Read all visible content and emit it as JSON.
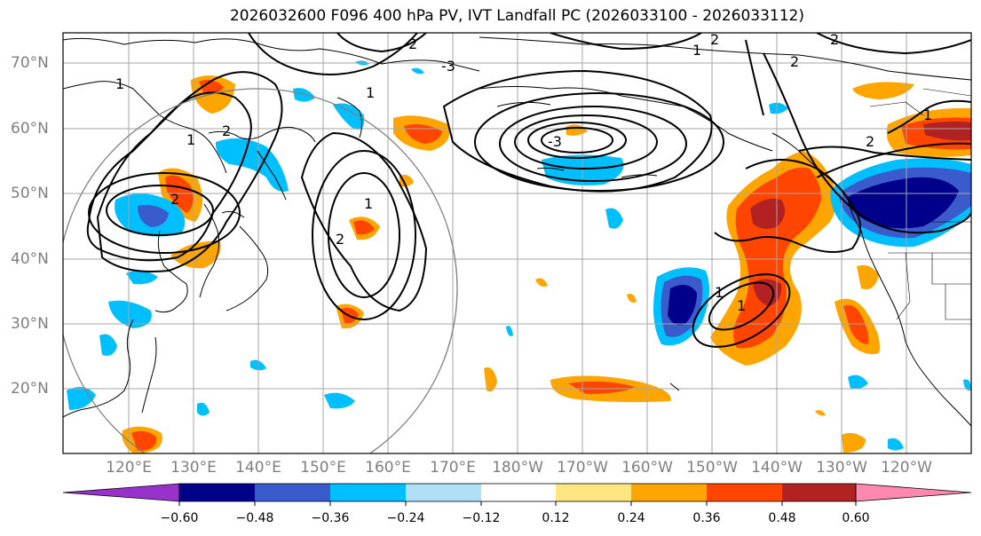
{
  "title": "2026032600 F096 400 hPa PV, IVT Landfall PC (2026033100 - 2026033112)",
  "lat_labels": [
    "70°N",
    "60°N",
    "50°N",
    "40°N",
    "30°N",
    "20°N"
  ],
  "lon_labels": [
    "120°E",
    "130°E",
    "140°E",
    "150°E",
    "160°E",
    "170°E",
    "180°W",
    "170°W",
    "160°W",
    "150°W",
    "140°W",
    "130°W",
    "120°W"
  ],
  "contour_labels": [
    "1",
    "2",
    "-3"
  ],
  "colorbar": {
    "ticks": [
      "−0.60",
      "−0.48",
      "−0.36",
      "−0.24",
      "−0.12",
      "0.12",
      "0.24",
      "0.36",
      "0.48",
      "0.60"
    ],
    "colors": [
      "#9932cc",
      "#00008b",
      "#3a5bcb",
      "#00bfff",
      "#b0e0f6",
      "#ffffff",
      "#ffe680",
      "#ffa500",
      "#ff4500",
      "#b22222",
      "#ff88b0"
    ]
  },
  "colors": {
    "ocean": "#ffffff",
    "coast": "#000000",
    "grid": "#a6a6a6",
    "contour": "#000000",
    "circle": "#808080"
  }
}
